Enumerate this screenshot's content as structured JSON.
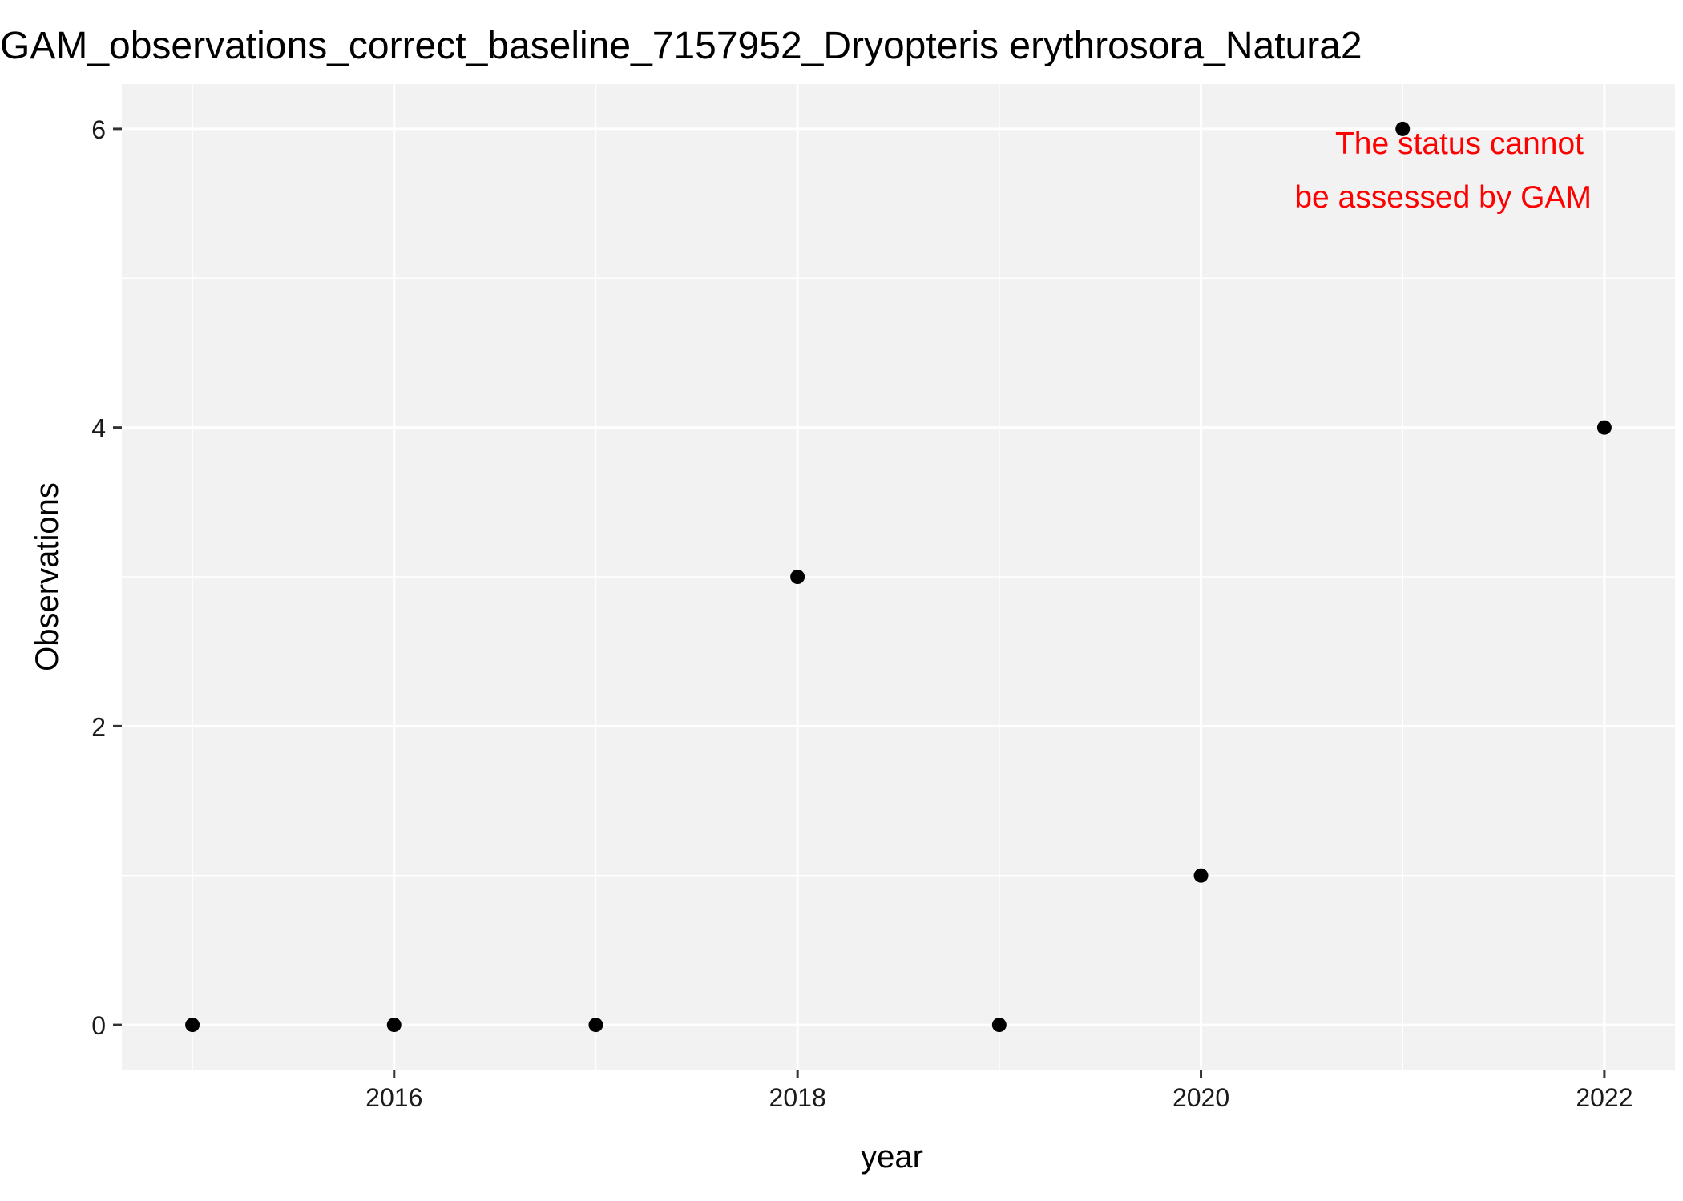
{
  "chart_data": {
    "type": "scatter",
    "title": "GAM_observations_correct_baseline_7157952_Dryopteris erythrosora_Natura2",
    "xlabel": "year",
    "ylabel": "Observations",
    "x": [
      2015,
      2016,
      2017,
      2018,
      2019,
      2020,
      2021,
      2022
    ],
    "y": [
      0,
      0,
      0,
      3,
      0,
      1,
      6,
      4
    ],
    "xlim": [
      2014.65,
      2022.35
    ],
    "ylim": [
      -0.3,
      6.3
    ],
    "x_ticks": [
      2016,
      2018,
      2020,
      2022
    ],
    "x_minor_ticks": [
      2015,
      2017,
      2019,
      2021
    ],
    "y_ticks": [
      0,
      2,
      4,
      6
    ],
    "y_minor_ticks": [
      1,
      3,
      5
    ],
    "grid": true,
    "annotation": {
      "lines": [
        "The status cannot",
        "be assessed by GAM"
      ],
      "color": "#ff0000"
    },
    "colors": {
      "panel_background": "#f2f2f2",
      "grid": "#ffffff",
      "points": "#000000"
    }
  }
}
